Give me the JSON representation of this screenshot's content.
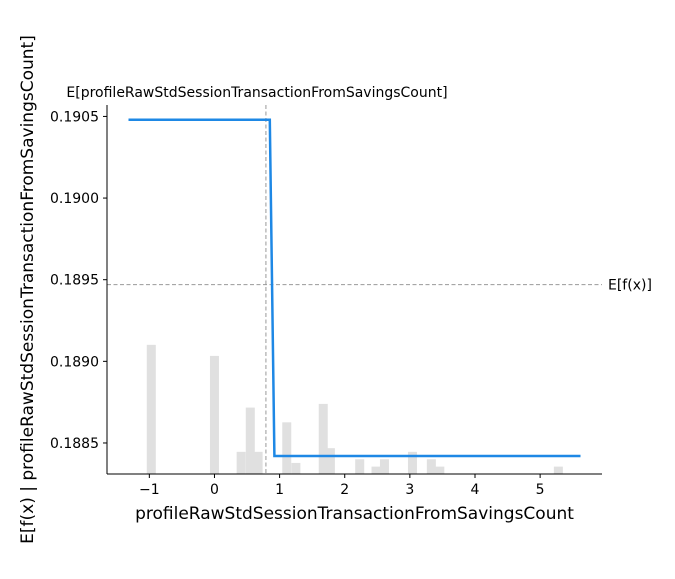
{
  "chart_data": {
    "type": "line",
    "title": "",
    "xlabel": "profileRawStdSessionTransactionFromSavingsCount",
    "ylabel": "E[f(x) | profileRawStdSessionTransactionFromSavingsCount]",
    "xlim": [
      -1.65,
      5.95
    ],
    "ylim": [
      0.18831,
      0.19057
    ],
    "x_ticks": [
      -1,
      0,
      1,
      2,
      3,
      4,
      5
    ],
    "x_tick_labels": [
      "−1",
      "0",
      "1",
      "2",
      "3",
      "4",
      "5"
    ],
    "y_ticks": [
      0.1885,
      0.189,
      0.1895,
      0.19,
      0.1905
    ],
    "y_tick_labels": [
      "0.1885",
      "0.1890",
      "0.1895",
      "0.1900",
      "0.1905"
    ],
    "series": [
      {
        "name": "partial dependence",
        "color": "#1e88e5",
        "x": [
          -1.32,
          0.85,
          0.92,
          5.62
        ],
        "y": [
          0.19048,
          0.19048,
          0.18842,
          0.18842
        ]
      }
    ],
    "expected_value_line": {
      "label": "E[f(x)]",
      "y": 0.18947,
      "color": "#999999"
    },
    "expected_feature_line": {
      "label": "E[profileRawStdSessionTransactionFromSavingsCount]",
      "x": 0.79,
      "color": "#999999"
    },
    "histogram": {
      "color": "#e0e0e0",
      "bars": [
        {
          "x": -0.97,
          "h": 0.35
        },
        {
          "x": 0.0,
          "h": 0.32
        },
        {
          "x": 0.41,
          "h": 0.06
        },
        {
          "x": 0.55,
          "h": 0.18
        },
        {
          "x": 0.67,
          "h": 0.06
        },
        {
          "x": 1.11,
          "h": 0.14
        },
        {
          "x": 1.25,
          "h": 0.03
        },
        {
          "x": 1.67,
          "h": 0.19
        },
        {
          "x": 1.78,
          "h": 0.07
        },
        {
          "x": 2.23,
          "h": 0.04
        },
        {
          "x": 2.48,
          "h": 0.02
        },
        {
          "x": 2.61,
          "h": 0.04
        },
        {
          "x": 3.04,
          "h": 0.06
        },
        {
          "x": 3.33,
          "h": 0.04
        },
        {
          "x": 3.46,
          "h": 0.02
        },
        {
          "x": 5.28,
          "h": 0.02
        }
      ]
    }
  }
}
